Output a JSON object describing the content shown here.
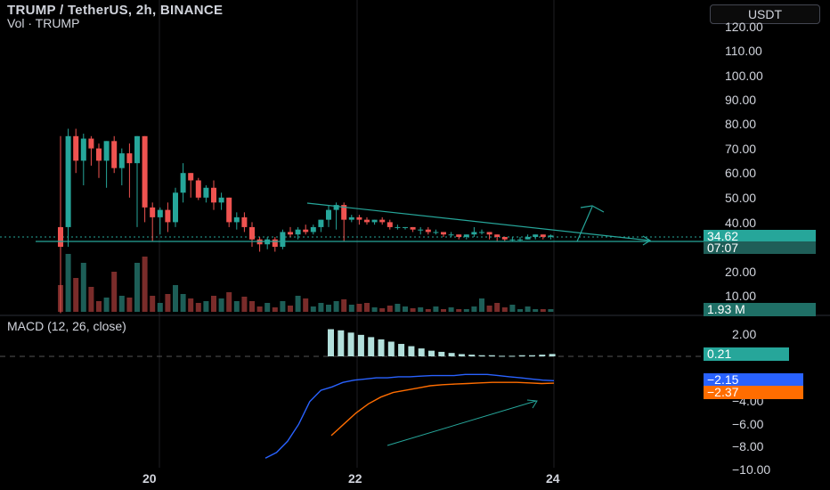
{
  "header": {
    "title": "TRUMP / TetherUS, 2h, BINANCE",
    "volume_label": "Vol · TRUMP"
  },
  "currency_button": "USDT",
  "price_axis": {
    "ticks": [
      "120.00",
      "110.00",
      "100.00",
      "90.00",
      "80.00",
      "70.00",
      "60.00",
      "50.00",
      "40.00",
      "20.00",
      "10.00"
    ],
    "last_price": "34.62",
    "countdown": "07:07",
    "volume_value": "1.93 M"
  },
  "macd_panel": {
    "label": "MACD (12, 26, close)",
    "ticks": [
      "2.00",
      "−4.00",
      "−6.00",
      "−8.00",
      "−10.00"
    ],
    "hist_value": "0.21",
    "macd_value": "−2.15",
    "signal_value": "−2.37"
  },
  "time_axis": {
    "labels": [
      "20",
      "22",
      "24"
    ]
  },
  "colors": {
    "up": "#26a69a",
    "down": "#ef5350",
    "macd": "#2962ff",
    "signal": "#ff6d00",
    "hist": "#b2dfdb",
    "annotation": "#26a69a"
  },
  "chart_data": {
    "type": "candlestick",
    "price_ylim": [
      0,
      125
    ],
    "candles": [
      [
        38,
        30,
        75,
        3
      ],
      [
        38,
        75,
        78,
        30
      ],
      [
        75,
        65,
        78,
        60
      ],
      [
        65,
        74,
        76,
        55
      ],
      [
        74,
        70,
        75,
        63
      ],
      [
        70,
        65,
        72,
        58
      ],
      [
        65,
        73,
        73,
        54
      ],
      [
        73,
        62,
        75,
        60
      ],
      [
        62,
        68,
        70,
        55
      ],
      [
        68,
        64,
        72,
        50
      ],
      [
        64,
        75,
        75,
        38
      ],
      [
        75,
        46,
        75,
        40
      ],
      [
        46,
        42,
        48,
        32
      ],
      [
        42,
        45,
        46,
        35
      ],
      [
        45,
        40,
        48,
        36
      ],
      [
        40,
        52,
        54,
        38
      ],
      [
        52,
        60,
        64,
        48
      ],
      [
        60,
        57,
        60,
        50
      ],
      [
        57,
        50,
        58,
        49
      ],
      [
        50,
        54,
        55,
        48
      ],
      [
        54,
        48,
        57,
        45
      ],
      [
        48,
        50,
        52,
        45
      ],
      [
        50,
        40,
        50,
        38
      ],
      [
        40,
        42,
        44,
        37
      ],
      [
        42,
        38,
        44,
        36
      ],
      [
        38,
        33,
        40,
        30
      ],
      [
        33,
        31,
        34,
        28
      ],
      [
        31,
        33,
        34,
        29
      ],
      [
        33,
        30,
        34,
        28
      ],
      [
        30,
        36,
        37,
        29
      ],
      [
        36,
        35,
        38,
        34
      ],
      [
        35,
        37,
        38,
        33
      ],
      [
        37,
        36,
        39,
        35
      ],
      [
        36,
        38,
        39,
        35
      ],
      [
        38,
        41,
        41,
        36
      ],
      [
        41,
        45,
        47,
        38
      ],
      [
        45,
        47,
        48,
        37
      ],
      [
        47,
        41,
        48,
        32
      ],
      [
        41,
        42,
        43,
        40
      ],
      [
        42,
        41,
        43,
        39
      ],
      [
        41,
        40,
        42,
        39
      ],
      [
        40,
        41,
        41,
        39
      ],
      [
        41,
        40,
        42,
        39
      ],
      [
        40,
        38,
        41,
        37
      ],
      [
        38,
        38,
        39,
        37
      ],
      [
        38,
        38,
        38,
        37
      ],
      [
        38,
        37,
        38,
        36
      ],
      [
        37,
        37,
        38,
        35
      ],
      [
        37,
        36,
        38,
        35
      ],
      [
        36,
        36,
        37,
        35
      ],
      [
        36,
        35,
        36,
        34
      ],
      [
        35,
        35,
        36,
        34
      ],
      [
        35,
        34,
        35,
        33
      ],
      [
        34,
        35,
        35,
        33
      ],
      [
        35,
        36,
        38,
        34
      ],
      [
        36,
        36,
        37,
        35
      ],
      [
        36,
        35,
        36,
        33
      ],
      [
        35,
        34,
        35,
        32
      ],
      [
        34,
        33,
        34,
        32
      ],
      [
        33,
        33,
        34,
        32
      ],
      [
        33,
        33,
        34,
        32
      ],
      [
        33,
        34,
        35,
        33
      ],
      [
        34,
        35,
        35,
        33
      ],
      [
        35,
        34,
        35,
        33
      ],
      [
        34,
        34.6,
        35,
        33
      ]
    ],
    "volumes": [
      30,
      65,
      38,
      55,
      28,
      12,
      16,
      45,
      18,
      16,
      55,
      62,
      18,
      10,
      20,
      30,
      20,
      15,
      10,
      12,
      18,
      15,
      22,
      12,
      17,
      12,
      6,
      10,
      5,
      12,
      7,
      18,
      15,
      6,
      10,
      8,
      12,
      14,
      8,
      9,
      10,
      5,
      4,
      7,
      9,
      6,
      4,
      5,
      3,
      6,
      3,
      5,
      3,
      3,
      6,
      15,
      7,
      10,
      5,
      8,
      3,
      6,
      3,
      3,
      3
    ],
    "macd": {
      "series_name": "MACD",
      "values": [
        -9,
        -8.5,
        -7.5,
        -6,
        -4,
        -3,
        -2.7,
        -2.3,
        -2.1,
        -2.0,
        -1.9,
        -1.9,
        -1.8,
        -1.8,
        -1.75,
        -1.7,
        -1.7,
        -1.7,
        -1.6,
        -1.6,
        -1.6,
        -1.7,
        -1.8,
        -1.9,
        -2.0,
        -2.1,
        -2.15
      ]
    },
    "signal": {
      "series_name": "Signal",
      "values": [
        -7,
        -6,
        -5,
        -4.2,
        -3.6,
        -3.2,
        -3.0,
        -2.8,
        -2.6,
        -2.5,
        -2.45,
        -2.4,
        -2.35,
        -2.3,
        -2.3,
        -2.3,
        -2.35,
        -2.4,
        -2.37
      ]
    },
    "histogram": [
      2.4,
      2.3,
      2.1,
      1.9,
      1.7,
      1.5,
      1.3,
      1.1,
      0.9,
      0.7,
      0.5,
      0.4,
      0.3,
      0.2,
      0.15,
      0.1,
      0.1,
      0.05,
      0.05,
      0.1,
      0.1,
      0.15,
      0.21
    ],
    "x_labels": [
      "20",
      "22",
      "24"
    ]
  }
}
